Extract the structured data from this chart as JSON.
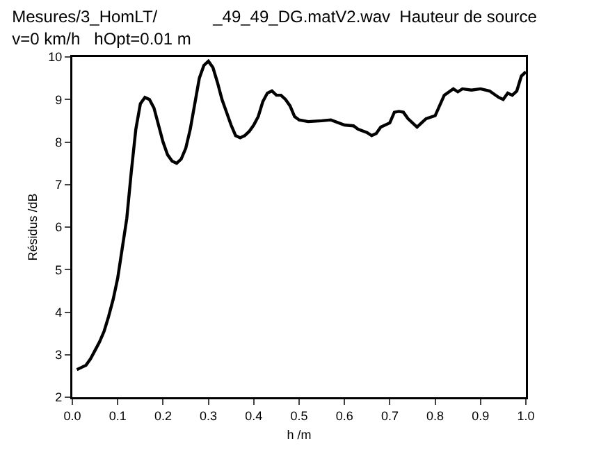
{
  "chart_data": {
    "type": "line",
    "title": "Mesures/3_HomLT/            _49_49_DG.matV2.wav  Hauteur de source",
    "subtitle": "v=0 km/h   hOpt=0.01 m",
    "xlabel": "h /m",
    "ylabel": "Résidus /dB",
    "x": [
      0.01,
      0.02,
      0.03,
      0.04,
      0.05,
      0.06,
      0.07,
      0.08,
      0.09,
      0.1,
      0.11,
      0.12,
      0.13,
      0.14,
      0.15,
      0.16,
      0.17,
      0.18,
      0.19,
      0.2,
      0.21,
      0.22,
      0.23,
      0.24,
      0.25,
      0.26,
      0.27,
      0.28,
      0.29,
      0.3,
      0.31,
      0.32,
      0.33,
      0.34,
      0.35,
      0.36,
      0.37,
      0.38,
      0.39,
      0.4,
      0.41,
      0.42,
      0.43,
      0.44,
      0.45,
      0.46,
      0.47,
      0.48,
      0.49,
      0.5,
      0.52,
      0.55,
      0.57,
      0.6,
      0.62,
      0.63,
      0.65,
      0.66,
      0.67,
      0.68,
      0.7,
      0.71,
      0.72,
      0.73,
      0.74,
      0.76,
      0.77,
      0.78,
      0.8,
      0.82,
      0.84,
      0.85,
      0.86,
      0.88,
      0.9,
      0.92,
      0.94,
      0.95,
      0.96,
      0.97,
      0.98,
      0.99,
      1.0
    ],
    "series": [
      {
        "color": "#000000",
        "values": [
          2.65,
          2.7,
          2.75,
          2.9,
          3.1,
          3.3,
          3.55,
          3.9,
          4.3,
          4.8,
          5.5,
          6.2,
          7.3,
          8.3,
          8.9,
          9.05,
          9.0,
          8.8,
          8.4,
          8.0,
          7.7,
          7.55,
          7.5,
          7.6,
          7.85,
          8.3,
          8.9,
          9.5,
          9.8,
          9.9,
          9.75,
          9.4,
          9.0,
          8.7,
          8.4,
          8.15,
          8.1,
          8.15,
          8.25,
          8.4,
          8.6,
          8.95,
          9.15,
          9.2,
          9.1,
          9.1,
          9.0,
          8.85,
          8.6,
          8.52,
          8.48,
          8.5,
          8.52,
          8.4,
          8.38,
          8.3,
          8.22,
          8.15,
          8.2,
          8.35,
          8.45,
          8.7,
          8.72,
          8.7,
          8.55,
          8.35,
          8.45,
          8.55,
          8.62,
          9.1,
          9.25,
          9.18,
          9.25,
          9.22,
          9.25,
          9.2,
          9.05,
          9.0,
          9.15,
          9.1,
          9.2,
          9.55,
          9.65
        ]
      }
    ],
    "xlim": [
      0,
      1
    ],
    "xticks": [
      {
        "value": 0,
        "label": "0.0"
      },
      0.1,
      0.2,
      0.3,
      0.4,
      0.5,
      0.6,
      0.7,
      0.8,
      0.9,
      {
        "value": 1,
        "label": "1.0"
      }
    ],
    "ylim": [
      2,
      10
    ],
    "yticks": [
      2,
      3,
      4,
      5,
      6,
      7,
      8,
      9,
      10
    ],
    "grid": false,
    "marker": "none",
    "line_style": "solid"
  }
}
